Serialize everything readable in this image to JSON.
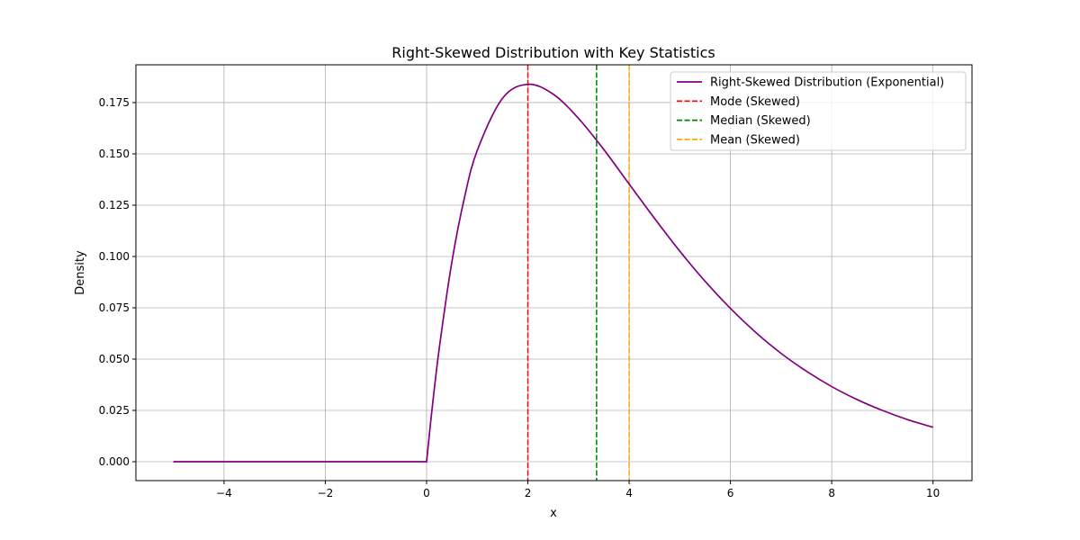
{
  "chart_data": {
    "type": "line",
    "title": "Right-Skewed Distribution with Key Statistics",
    "xlabel": "x",
    "ylabel": "Density",
    "xlim": [
      -5.74,
      10.77
    ],
    "ylim": [
      -0.0092,
      0.1934
    ],
    "grid": true,
    "legend_placement": "top-right",
    "xticks": [
      -4,
      -2,
      0,
      2,
      4,
      6,
      8,
      10
    ],
    "xtick_labels": [
      "−4",
      "−2",
      "0",
      "2",
      "4",
      "6",
      "8",
      "10"
    ],
    "yticks": [
      0,
      0.025,
      0.05,
      0.075,
      0.1,
      0.125,
      0.15,
      0.175
    ],
    "ytick_labels": [
      "0.000",
      "0.025",
      "0.050",
      "0.075",
      "0.100",
      "0.125",
      "0.150",
      "0.175"
    ],
    "series": [
      {
        "name": "Right-Skewed Distribution (Exponential)",
        "color": "#800080",
        "x": [
          -5,
          0,
          0.1,
          0.25,
          0.5,
          0.75,
          1,
          1.5,
          2,
          2.5,
          3,
          3.5,
          4,
          4.5,
          5,
          5.5,
          6,
          6.5,
          7,
          7.5,
          8,
          8.5,
          9,
          9.5,
          10
        ],
        "y": [
          0,
          0,
          0.0238,
          0.0552,
          0.0974,
          0.1289,
          0.1516,
          0.1771,
          0.1839,
          0.1791,
          0.1673,
          0.1521,
          0.1353,
          0.1186,
          0.1026,
          0.0879,
          0.0747,
          0.063,
          0.0528,
          0.0441,
          0.0366,
          0.0303,
          0.025,
          0.0205,
          0.0168
        ]
      }
    ],
    "vlines": [
      {
        "name": "Mode (Skewed)",
        "x": 2,
        "color": "#ff0000"
      },
      {
        "name": "Median (Skewed)",
        "x": 3.357,
        "color": "#008000"
      },
      {
        "name": "Mean (Skewed)",
        "x": 4,
        "color": "#ffa500"
      }
    ]
  }
}
